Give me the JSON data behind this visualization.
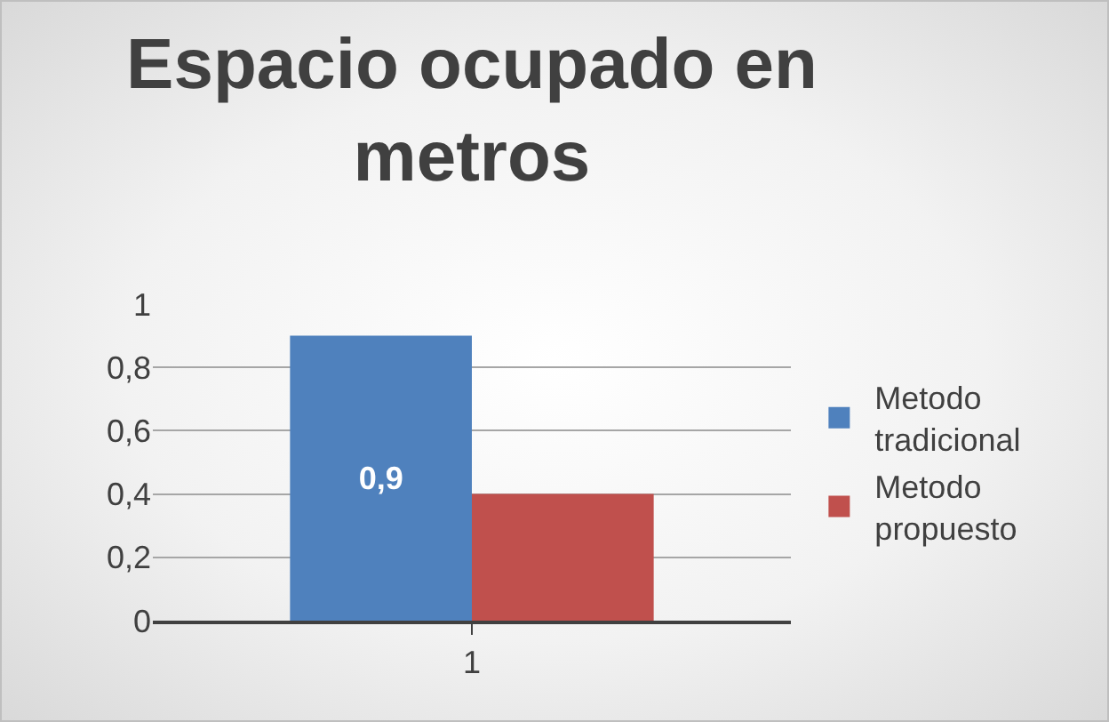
{
  "chart_data": {
    "type": "bar",
    "title": "Espacio ocupado en metros",
    "categories": [
      "1"
    ],
    "series": [
      {
        "name": "Metodo tradicional",
        "color": "#4f81bd",
        "values": [
          0.9
        ],
        "value_labels": [
          "0,9"
        ]
      },
      {
        "name": "Metodo propuesto",
        "color": "#c0504d",
        "values": [
          0.4
        ]
      }
    ],
    "ylim": [
      0,
      1
    ],
    "yticks": [
      {
        "value": 0,
        "label": "0"
      },
      {
        "value": 0.2,
        "label": "0,2"
      },
      {
        "value": 0.4,
        "label": "0,4"
      },
      {
        "value": 0.6,
        "label": "0,6"
      },
      {
        "value": 0.8,
        "label": "0,8"
      },
      {
        "value": 1,
        "label": "1"
      }
    ],
    "grid": "y",
    "legend": "right"
  }
}
